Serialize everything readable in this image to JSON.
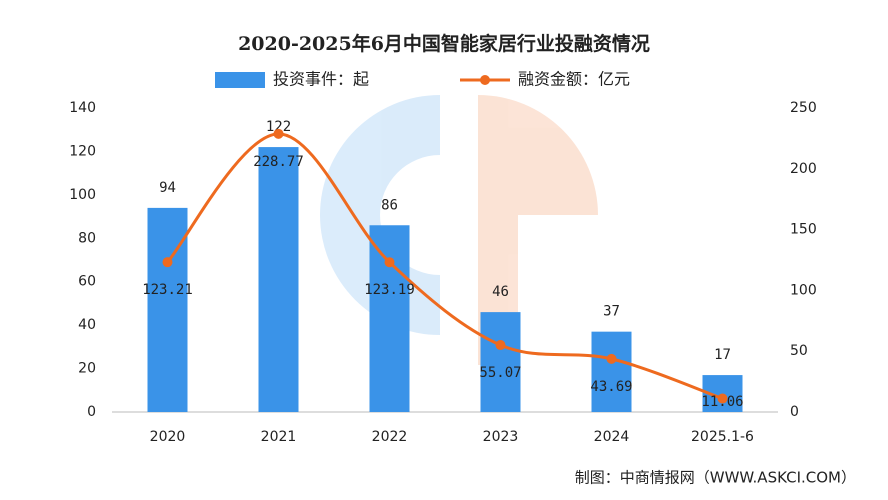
{
  "chart_data": {
    "type": "bar",
    "title": "2020-2025年6月中国智能家居行业投融资情况",
    "categories": [
      "2020",
      "2021",
      "2022",
      "2023",
      "2024",
      "2025.1-6"
    ],
    "series": [
      {
        "name": "投资事件：起",
        "type": "bar",
        "color": "#3a93e8",
        "values": [
          94,
          122,
          86,
          46,
          37,
          17
        ]
      },
      {
        "name": "融资金额：亿元",
        "type": "line",
        "axis": "y2",
        "color": "#ee6a1f",
        "values": [
          123.21,
          228.77,
          123.19,
          55.07,
          43.69,
          11.06
        ]
      }
    ],
    "ylim": [
      0,
      140
    ],
    "yticks": [
      0,
      20,
      40,
      60,
      80,
      100,
      120,
      140
    ],
    "y2lim": [
      0,
      250
    ],
    "y2ticks": [
      0,
      50,
      100,
      150,
      200,
      250
    ],
    "grid": false,
    "legend": "top",
    "source": "制图：中商情报网（WWW.ASKCI.COM）"
  }
}
